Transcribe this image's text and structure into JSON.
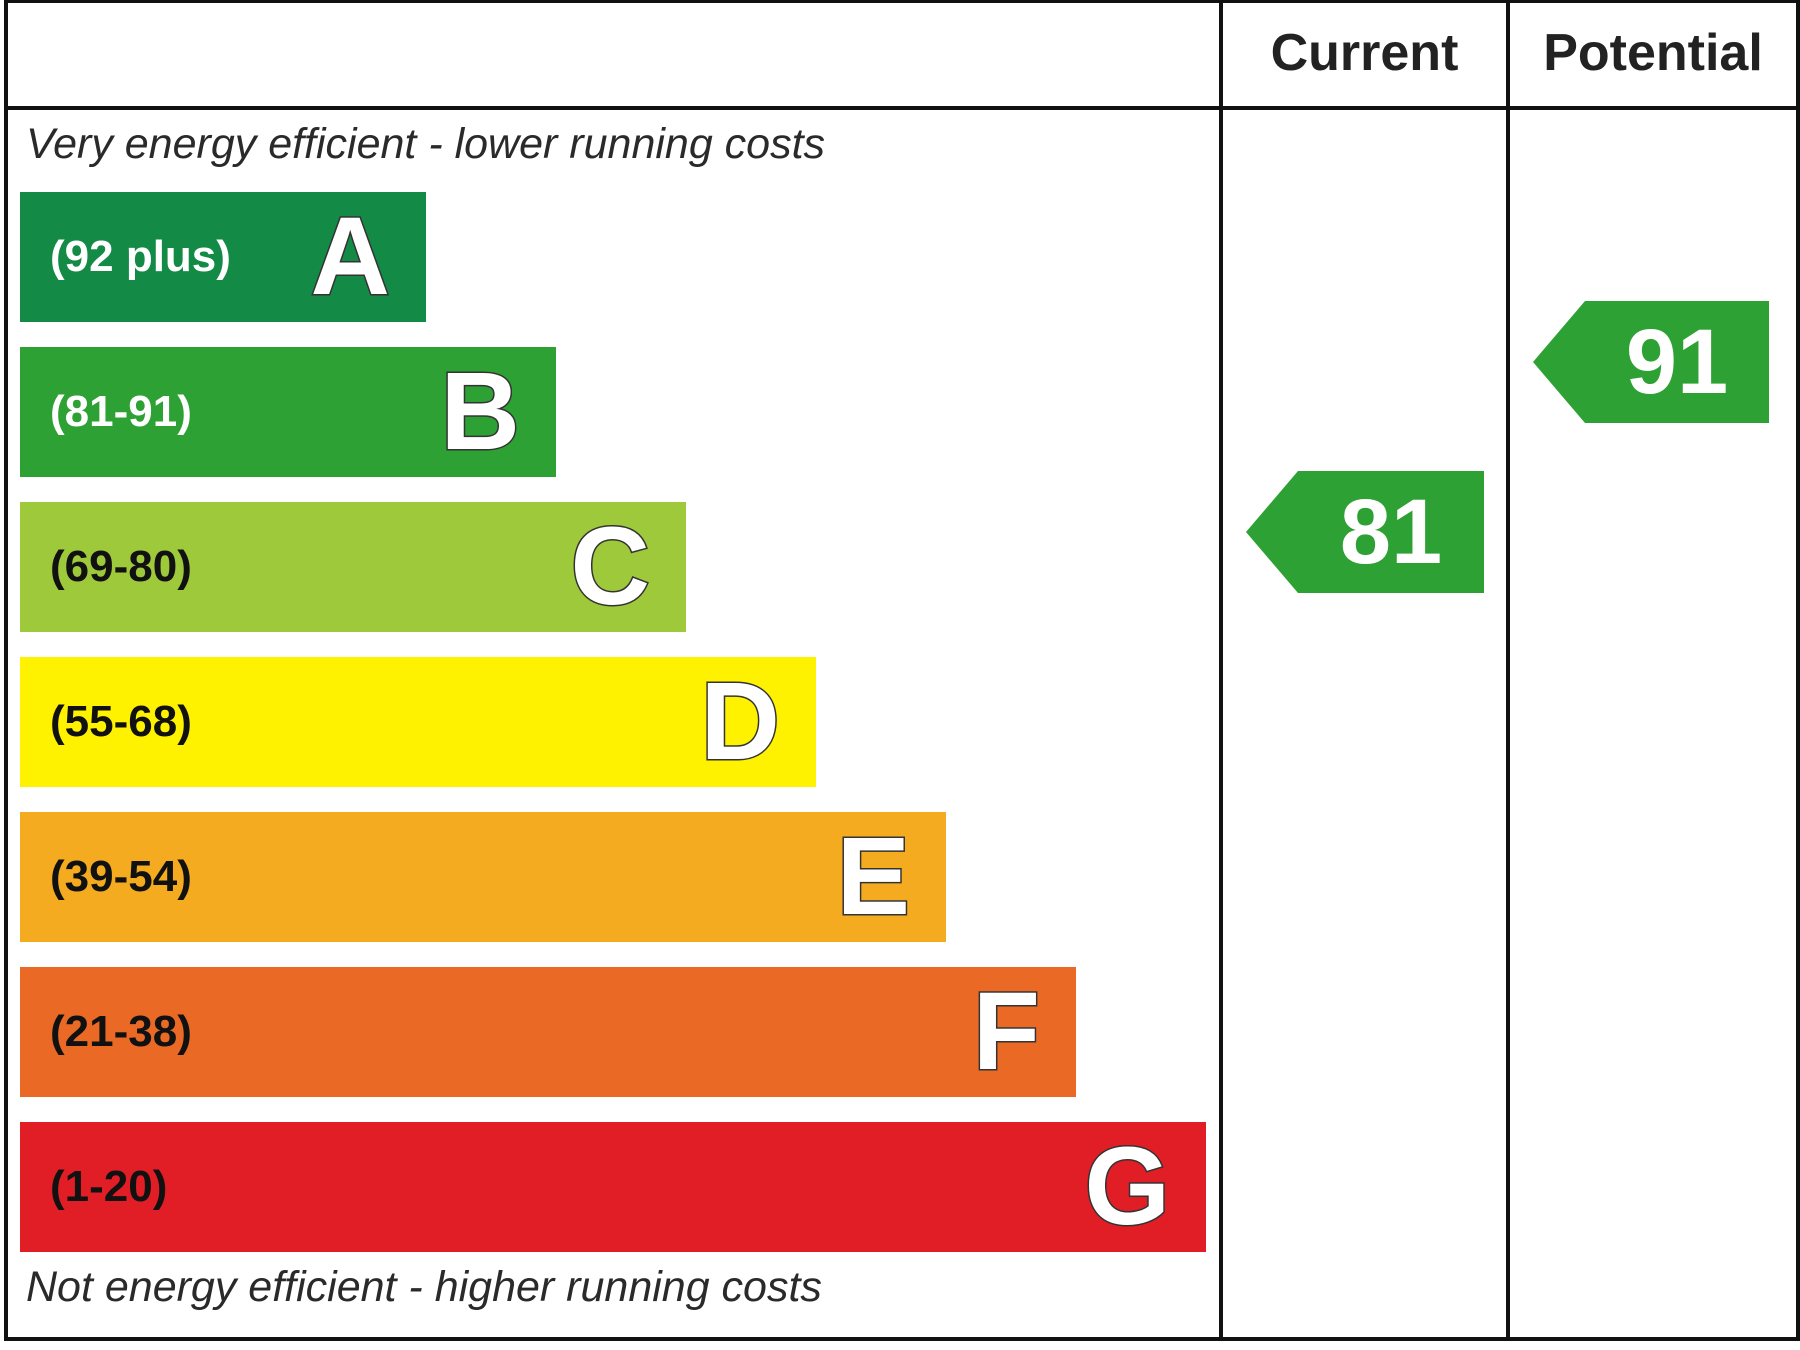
{
  "header": {
    "current_label": "Current",
    "potential_label": "Potential"
  },
  "captions": {
    "top": "Very energy efficient - lower running costs",
    "bottom": "Not energy efficient - higher running costs"
  },
  "chart_data": {
    "type": "bar",
    "bands": [
      {
        "letter": "A",
        "range": "(92 plus)",
        "color": "#138a45",
        "text_color": "#ffffff"
      },
      {
        "letter": "B",
        "range": "(81-91)",
        "color": "#2da133",
        "text_color": "#ffffff"
      },
      {
        "letter": "C",
        "range": "(69-80)",
        "color": "#9dc93b",
        "text_color": "#111111"
      },
      {
        "letter": "D",
        "range": "(55-68)",
        "color": "#fff200",
        "text_color": "#111111"
      },
      {
        "letter": "E",
        "range": "(39-54)",
        "color": "#f5ab1f",
        "text_color": "#111111"
      },
      {
        "letter": "F",
        "range": "(21-38)",
        "color": "#ea6a25",
        "text_color": "#111111"
      },
      {
        "letter": "G",
        "range": "(1-20)",
        "color": "#e11e25",
        "text_color": "#111111"
      }
    ],
    "current": {
      "value": 81,
      "band": "B",
      "color": "#2da133"
    },
    "potential": {
      "value": 91,
      "band": "B",
      "color": "#2da133"
    }
  }
}
